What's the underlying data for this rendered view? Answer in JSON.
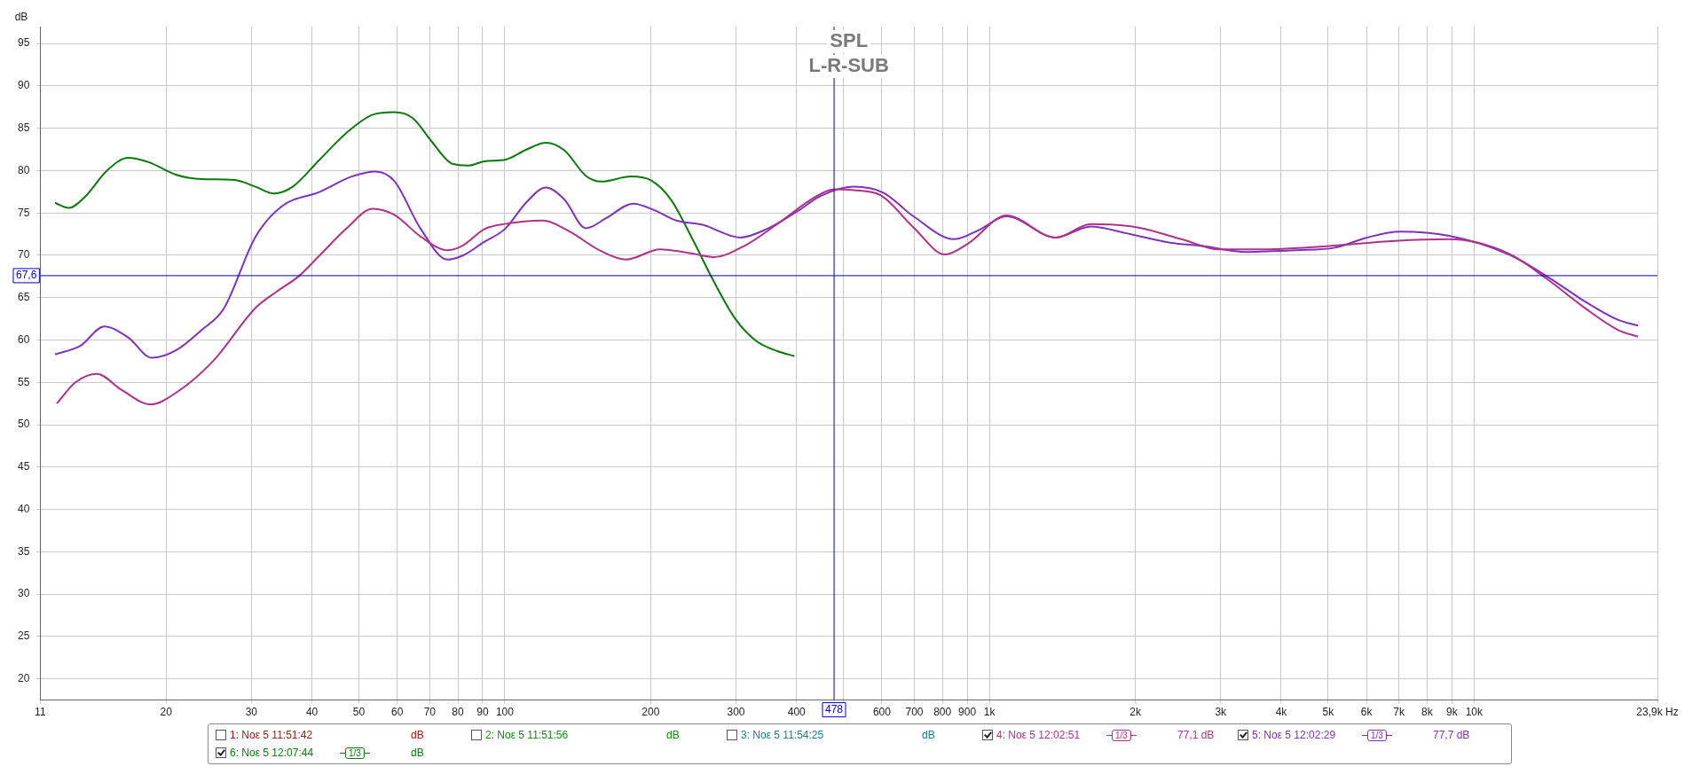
{
  "chart_data": {
    "type": "line",
    "title": "SPL",
    "subtitle": "L-R-SUB",
    "ylabel": "dB",
    "log": "x",
    "grid": true,
    "legend": "bottom",
    "marker": "none",
    "line_style": "solid",
    "xlim": [
      11,
      23900
    ],
    "ylim": [
      17.5,
      97
    ],
    "xticks": [
      11,
      20,
      30,
      40,
      50,
      60,
      70,
      80,
      90,
      100,
      200,
      300,
      400,
      {
        "value": 500,
        "label": null
      },
      600,
      700,
      800,
      900,
      {
        "value": 1000,
        "label": "1k"
      },
      {
        "value": 2000,
        "label": "2k"
      },
      {
        "value": 3000,
        "label": "3k"
      },
      {
        "value": 4000,
        "label": "4k"
      },
      {
        "value": 5000,
        "label": "5k"
      },
      {
        "value": 6000,
        "label": "6k"
      },
      {
        "value": 7000,
        "label": "7k"
      },
      {
        "value": 8000,
        "label": "8k"
      },
      {
        "value": 9000,
        "label": "9k"
      },
      {
        "value": 10000,
        "label": "10k"
      },
      {
        "value": 23900,
        "label": "23,9k Hz"
      }
    ],
    "yticks": [
      20,
      25,
      30,
      35,
      40,
      45,
      50,
      55,
      60,
      65,
      70,
      75,
      80,
      85,
      90,
      95
    ],
    "ref_lines": [
      {
        "axis": "y",
        "value": 67.6,
        "label": "67,6",
        "color": "#0000cc"
      },
      {
        "axis": "x",
        "value": 478,
        "label": "478",
        "color": "#0000cc"
      }
    ],
    "series": [
      {
        "name": "4: Νοε 5 12:02:51",
        "color": "#b0308a",
        "x": [
          11.9,
          13,
          14.4,
          16.2,
          18.6,
          21,
          25,
          30.6,
          33.8,
          37.5,
          41.5,
          47,
          53.4,
          59.1,
          67.1,
          76.1,
          82.1,
          90.8,
          100,
          120,
          136,
          158,
          178,
          209,
          244,
          270,
          314,
          365,
          437,
          479,
          524,
          596,
          697,
          810,
          904,
          1084,
          1370,
          1620,
          2020,
          2490,
          2980,
          3580,
          5020,
          6860,
          8890,
          11800,
          14150,
          17000,
          19800,
          21800
        ],
        "values": [
          52.5,
          55,
          56,
          54.1,
          52.4,
          53.8,
          57.5,
          63.8,
          65.7,
          67.5,
          70,
          73.1,
          75.5,
          74.8,
          72.2,
          70.6,
          71.2,
          73.1,
          73.7,
          74.1,
          72.8,
          70.5,
          69.5,
          70.7,
          70.2,
          69.8,
          71.2,
          73.7,
          76.9,
          77.8,
          77.7,
          77.1,
          73.3,
          70.1,
          71.4,
          74.7,
          72.1,
          73.7,
          73.3,
          71.9,
          70.7,
          70.7,
          71.1,
          71.7,
          71.9,
          70.2,
          67.2,
          63.7,
          61.2,
          60.4
        ]
      },
      {
        "name": "5: Νοε 5 12:02:29",
        "color": "#8030c0",
        "x": [
          11.8,
          13.3,
          14.9,
          16.7,
          18.7,
          21,
          23.7,
          26.3,
          30.6,
          34.7,
          41.5,
          48.3,
          54.1,
          59.1,
          67.1,
          76.1,
          82.1,
          90.8,
          100,
          111,
          121.5,
          132.7,
          147,
          162,
          184,
          204,
          226,
          256,
          306,
          347,
          404,
          448,
          524,
          604,
          697,
          847,
          952,
          1084,
          1370,
          1620,
          1920,
          2360,
          2760,
          3390,
          4300,
          5160,
          6020,
          7040,
          8890,
          11800,
          14150,
          17000,
          19800,
          21800
        ],
        "values": [
          58.3,
          59.3,
          61.6,
          60.3,
          57.9,
          58.8,
          61.2,
          63.7,
          72.2,
          75.8,
          77.5,
          79.3,
          79.9,
          78.8,
          73.1,
          69.5,
          70,
          71.6,
          73.1,
          76.3,
          78,
          76.6,
          73.2,
          74.4,
          76.1,
          75.3,
          74.1,
          73.6,
          72.1,
          73.1,
          75.3,
          77,
          78.1,
          77.4,
          74.6,
          71.9,
          73,
          74.6,
          72.1,
          73.4,
          72.6,
          71.5,
          71.1,
          70.4,
          70.6,
          70.9,
          72.1,
          72.8,
          72.3,
          70.1,
          67.5,
          64.5,
          62.4,
          61.7
        ]
      },
      {
        "name": "6: Νοε 5 12:07:44",
        "color": "#0a7a0a",
        "x": [
          11.8,
          12.6,
          13.6,
          15.1,
          16.7,
          18.4,
          21,
          23.7,
          27.7,
          30.6,
          33.4,
          36.5,
          41.5,
          47,
          53.4,
          59.1,
          64.6,
          70.5,
          78,
          84.2,
          90.8,
          100.5,
          111,
          121.5,
          132.7,
          146.9,
          158.3,
          182,
          201,
          220,
          244,
          270,
          299,
          330,
          365,
          396
        ],
        "values": [
          76.2,
          75.6,
          76.9,
          80,
          81.5,
          81,
          79.5,
          79,
          78.9,
          78.1,
          77.3,
          78.1,
          81.3,
          84.4,
          86.6,
          86.9,
          86.2,
          83.5,
          80.8,
          80.6,
          81.1,
          81.3,
          82.5,
          83.3,
          82.4,
          79.4,
          78.7,
          79.3,
          78.8,
          76.6,
          71.9,
          66.9,
          62.5,
          59.9,
          58.7,
          58.1
        ]
      }
    ],
    "annotations": [
      "1: Νοε 5 11:51:42",
      "dB",
      "2: Νοε 5 11:51:56",
      "dB",
      "3: Νοε 5 11:54:25",
      "dB",
      "1/3",
      "77,1 dB",
      "1/3",
      "77,7 dB",
      "1/3",
      "dB"
    ]
  }
}
